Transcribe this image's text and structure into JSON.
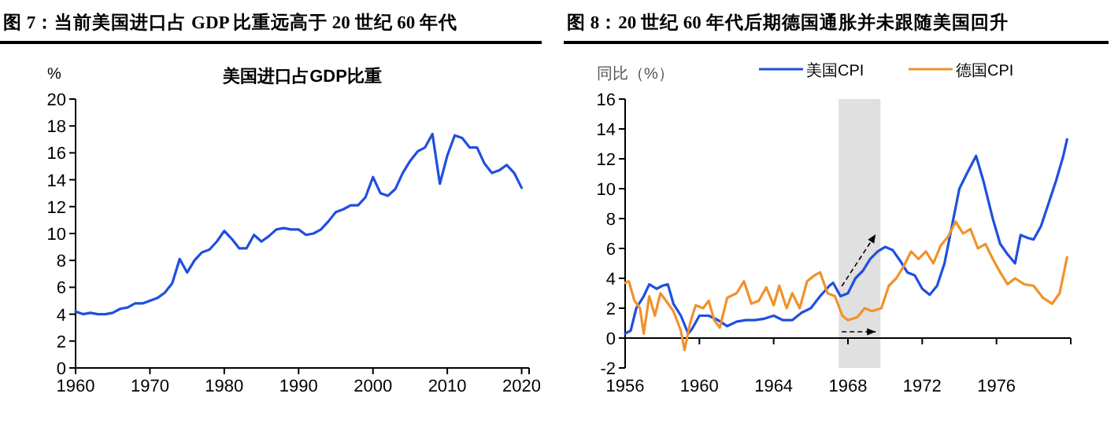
{
  "chart_data": [
    {
      "type": "line",
      "title": "图 7：当前美国进口占 GDP 比重远高于 20 世纪 60 年代",
      "subtitle": "美国进口占GDP比重",
      "ylabel": "%",
      "xlim": [
        1960,
        2021
      ],
      "xticks": [
        1960,
        1970,
        1980,
        1990,
        2000,
        2010,
        2020
      ],
      "ylim": [
        0,
        20
      ],
      "yticks": [
        0,
        2,
        4,
        6,
        8,
        10,
        12,
        14,
        16,
        18,
        20
      ],
      "x": [
        1960,
        1961,
        1962,
        1963,
        1964,
        1965,
        1966,
        1967,
        1968,
        1969,
        1970,
        1971,
        1972,
        1973,
        1974,
        1975,
        1976,
        1977,
        1978,
        1979,
        1980,
        1981,
        1982,
        1983,
        1984,
        1985,
        1986,
        1987,
        1988,
        1989,
        1990,
        1991,
        1992,
        1993,
        1994,
        1995,
        1996,
        1997,
        1998,
        1999,
        2000,
        2001,
        2002,
        2003,
        2004,
        2005,
        2006,
        2007,
        2008,
        2009,
        2010,
        2011,
        2012,
        2013,
        2014,
        2015,
        2016,
        2017,
        2018,
        2019,
        2020
      ],
      "series": [
        {
          "color": "#1f4fe0",
          "values": [
            4.2,
            4.0,
            4.1,
            4.0,
            4.0,
            4.1,
            4.4,
            4.5,
            4.8,
            4.8,
            5.0,
            5.2,
            5.6,
            6.3,
            8.1,
            7.1,
            8.0,
            8.6,
            8.8,
            9.4,
            10.2,
            9.6,
            8.9,
            8.9,
            9.9,
            9.4,
            9.8,
            10.3,
            10.4,
            10.3,
            10.3,
            9.9,
            10.0,
            10.3,
            10.9,
            11.6,
            11.8,
            12.1,
            12.1,
            12.7,
            14.2,
            13.0,
            12.8,
            13.3,
            14.5,
            15.4,
            16.1,
            16.4,
            17.4,
            13.7,
            15.8,
            17.3,
            17.1,
            16.4,
            16.4,
            15.2,
            14.5,
            14.7,
            15.1,
            14.5,
            13.4
          ]
        }
      ]
    },
    {
      "type": "line",
      "title": "图 8：20 世纪 60 年代后期德国通胀并未跟随美国回升",
      "ylabel": "同比（%）",
      "xlim": [
        1956,
        1980
      ],
      "xticks": [
        1956,
        1960,
        1964,
        1968,
        1972,
        1976
      ],
      "ylim": [
        -2,
        16
      ],
      "yticks": [
        -2,
        0,
        2,
        4,
        6,
        8,
        10,
        12,
        14,
        16
      ],
      "legend": "top",
      "bands": [
        {
          "axis": "x",
          "from": 1967.5,
          "to": 1969.75,
          "color": "#e0e0e0"
        }
      ],
      "series": [
        {
          "name": "美国CPI",
          "color": "#1f4fe0",
          "x": [
            1956.0,
            1956.3,
            1956.6,
            1957.0,
            1957.3,
            1957.7,
            1958.0,
            1958.3,
            1958.6,
            1959.0,
            1959.4,
            1959.6,
            1960.0,
            1960.5,
            1961.0,
            1961.5,
            1962.0,
            1962.5,
            1963.0,
            1963.5,
            1964.0,
            1964.5,
            1965.0,
            1965.5,
            1966.0,
            1966.5,
            1967.0,
            1967.2,
            1967.6,
            1968.0,
            1968.4,
            1968.8,
            1969.2,
            1969.6,
            1970.0,
            1970.4,
            1970.8,
            1971.2,
            1971.6,
            1972.0,
            1972.4,
            1972.8,
            1973.2,
            1973.6,
            1974.0,
            1974.4,
            1974.9,
            1975.3,
            1975.8,
            1976.2,
            1976.6,
            1977.0,
            1977.3,
            1977.7,
            1978.0,
            1978.4,
            1978.8,
            1979.2,
            1979.6,
            1979.8
          ],
          "values": [
            0.3,
            0.5,
            2.0,
            2.8,
            3.6,
            3.3,
            3.5,
            3.6,
            2.3,
            1.5,
            0.3,
            0.6,
            1.5,
            1.5,
            1.2,
            0.8,
            1.1,
            1.2,
            1.2,
            1.3,
            1.5,
            1.2,
            1.2,
            1.7,
            2.0,
            2.8,
            3.5,
            3.7,
            2.8,
            3.0,
            4.0,
            4.5,
            5.3,
            5.8,
            6.1,
            5.9,
            5.2,
            4.4,
            4.2,
            3.3,
            2.9,
            3.5,
            5.0,
            7.5,
            10.0,
            11.0,
            12.2,
            10.5,
            8.0,
            6.3,
            5.6,
            5.0,
            6.9,
            6.7,
            6.6,
            7.5,
            9.0,
            10.5,
            12.2,
            13.3
          ]
        },
        {
          "name": "德国CPI",
          "color": "#f0922c",
          "x": [
            1956.0,
            1956.2,
            1956.5,
            1956.8,
            1957.0,
            1957.3,
            1957.6,
            1957.9,
            1958.2,
            1958.6,
            1959.0,
            1959.2,
            1959.5,
            1959.8,
            1960.2,
            1960.5,
            1960.8,
            1961.1,
            1961.5,
            1962.0,
            1962.4,
            1962.8,
            1963.2,
            1963.6,
            1964.0,
            1964.3,
            1964.7,
            1965.0,
            1965.4,
            1965.8,
            1966.2,
            1966.5,
            1966.9,
            1967.3,
            1967.7,
            1968.0,
            1968.5,
            1968.9,
            1969.3,
            1969.8,
            1970.2,
            1970.6,
            1971.0,
            1971.4,
            1971.8,
            1972.2,
            1972.6,
            1973.0,
            1973.4,
            1973.8,
            1974.2,
            1974.6,
            1975.0,
            1975.4,
            1975.8,
            1976.2,
            1976.6,
            1977.0,
            1977.5,
            1978.0,
            1978.5,
            1979.0,
            1979.4,
            1979.8
          ],
          "values": [
            3.7,
            3.8,
            2.5,
            2.0,
            0.3,
            2.8,
            1.5,
            3.0,
            2.5,
            1.8,
            0.5,
            -0.8,
            1.0,
            2.2,
            2.0,
            2.5,
            1.2,
            0.7,
            2.7,
            3.0,
            3.8,
            2.3,
            2.5,
            3.4,
            2.2,
            3.5,
            2.0,
            3.0,
            2.0,
            3.8,
            4.2,
            4.4,
            3.0,
            2.8,
            1.5,
            1.2,
            1.4,
            2.0,
            1.8,
            2.0,
            3.5,
            4.0,
            4.8,
            5.8,
            5.3,
            5.8,
            5.0,
            6.2,
            6.8,
            7.8,
            7.0,
            7.3,
            6.0,
            6.3,
            5.3,
            4.4,
            3.6,
            4.0,
            3.6,
            3.5,
            2.7,
            2.3,
            3.0,
            5.4
          ]
        }
      ]
    }
  ]
}
